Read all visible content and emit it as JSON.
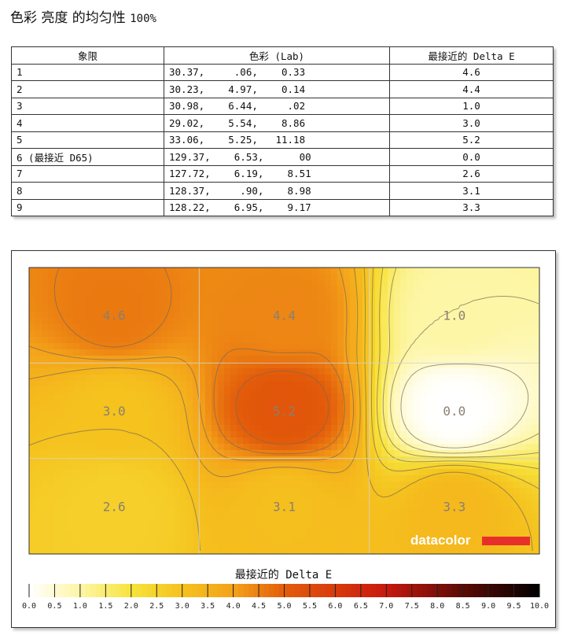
{
  "title": "色彩 亮度 的均匀性",
  "title_pct": "100%",
  "table": {
    "headers": [
      "象限",
      "色彩 (Lab)",
      "最接近的 Delta E"
    ],
    "rows": [
      {
        "q": "1",
        "lab": "30.37,     .06,    0.33",
        "de": "4.6"
      },
      {
        "q": "2",
        "lab": "30.23,    4.97,    0.14",
        "de": "4.4"
      },
      {
        "q": "3",
        "lab": "30.98,    6.44,     .02",
        "de": "1.0"
      },
      {
        "q": "4",
        "lab": "29.02,    5.54,    8.86",
        "de": "3.0"
      },
      {
        "q": "5",
        "lab": "33.06,    5.25,   11.18",
        "de": "5.2"
      },
      {
        "q": "6 (最接近 D65)",
        "lab": "129.37,    6.53,      00",
        "de": "0.0"
      },
      {
        "q": "7",
        "lab": "127.72,    6.19,    8.51",
        "de": "2.6"
      },
      {
        "q": "8",
        "lab": "128.37,     .90,    8.98",
        "de": "3.1"
      },
      {
        "q": "9",
        "lab": "128.22,    6.95,    9.17",
        "de": "3.3"
      }
    ]
  },
  "chart_data": {
    "type": "heatmap",
    "title": "最接近的 Delta E",
    "grid_rows": 3,
    "grid_cols": 3,
    "cells": [
      [
        4.6,
        4.4,
        1.0
      ],
      [
        3.0,
        5.2,
        0.0
      ],
      [
        2.6,
        3.1,
        3.3
      ]
    ],
    "scale_min": 0.0,
    "scale_max": 10.0,
    "scale_ticks": [
      "0.0",
      "0.5",
      "1.0",
      "1.5",
      "2.0",
      "2.5",
      "3.0",
      "3.5",
      "4.0",
      "4.5",
      "5.0",
      "5.5",
      "6.0",
      "6.5",
      "7.0",
      "7.5",
      "8.0",
      "8.5",
      "9.0",
      "9.5",
      "10.0"
    ],
    "colors": {
      "low": "#ffffff",
      "mid_low": "#f7e33c",
      "mid": "#f4a21a",
      "mid_high": "#e35d0a",
      "high_red": "#c8180e",
      "dark": "#5a0b05",
      "max": "#000000",
      "cell_label": "#8a7f70"
    },
    "grid": true
  },
  "watermark": "datacolor",
  "watermark_color": "#e8302a"
}
